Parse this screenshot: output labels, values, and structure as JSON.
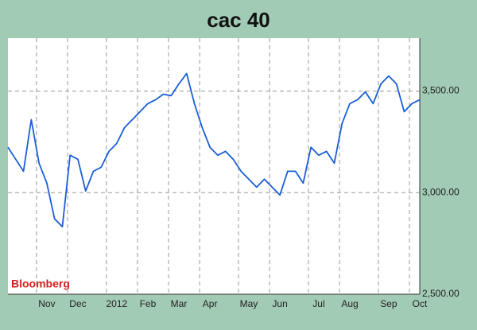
{
  "chart_data": {
    "type": "line",
    "title": "cac 40",
    "source": "Bloomberg",
    "categories": [
      null,
      null,
      null,
      null,
      null,
      "Nov",
      null,
      null,
      null,
      "Dec",
      null,
      null,
      null,
      null,
      "2012",
      null,
      null,
      null,
      "Feb",
      null,
      null,
      null,
      "Mar",
      null,
      null,
      null,
      "Apr",
      null,
      null,
      null,
      null,
      "May",
      null,
      null,
      null,
      "Jun",
      null,
      null,
      null,
      null,
      "Jul",
      null,
      null,
      null,
      "Aug",
      null,
      null,
      null,
      null,
      "Sep",
      null,
      null,
      null,
      "Oct"
    ],
    "series": [
      {
        "name": "cac 40",
        "color": "#1a5fd6",
        "values": [
          3223,
          3164,
          3105,
          3359,
          3145,
          3047,
          2871,
          2832,
          3184,
          3164,
          3008,
          3105,
          3125,
          3203,
          3242,
          3320,
          3359,
          3398,
          3438,
          3457,
          3484,
          3477,
          3535,
          3586,
          3438,
          3320,
          3223,
          3184,
          3203,
          3164,
          3105,
          3066,
          3027,
          3066,
          3027,
          2988,
          3105,
          3105,
          3047,
          3223,
          3184,
          3203,
          3145,
          3340,
          3438,
          3457,
          3496,
          3438,
          3535,
          3574,
          3535,
          3398,
          3438,
          3457
        ]
      }
    ],
    "ylim": [
      2500,
      3760
    ],
    "yticks": [
      {
        "value": 2500,
        "label": "2,500.00"
      },
      {
        "value": 3000,
        "label": "3,000.00"
      },
      {
        "value": 3500,
        "label": "3,500.00"
      }
    ],
    "grid": true
  }
}
